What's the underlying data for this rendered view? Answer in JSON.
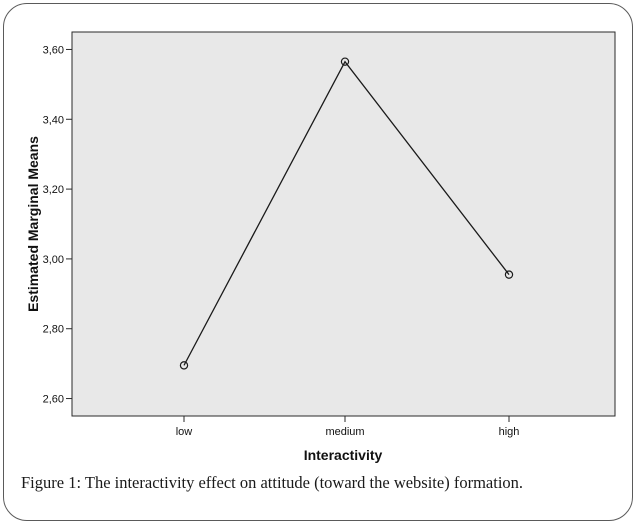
{
  "chart_data": {
    "type": "line",
    "categories": [
      "low",
      "medium",
      "high"
    ],
    "series": [
      {
        "values": [
          2.695,
          3.565,
          2.955
        ]
      }
    ],
    "xlabel": "Interactivity",
    "ylabel": "Estimated Marginal Means",
    "ylim": [
      2.55,
      3.65
    ],
    "yticks": [
      2.6,
      2.8,
      3.0,
      3.2,
      3.4,
      3.6
    ],
    "ytick_labels": [
      "2,60",
      "2,80",
      "3,00",
      "3,20",
      "3,40",
      "3,60"
    ],
    "grid": false,
    "marker": "open-circle",
    "colors": {
      "plot_background": "#e8e8e8",
      "line": "#1a1a1a"
    }
  },
  "caption": "Figure 1: The interactivity effect on attitude (toward the website) formation."
}
